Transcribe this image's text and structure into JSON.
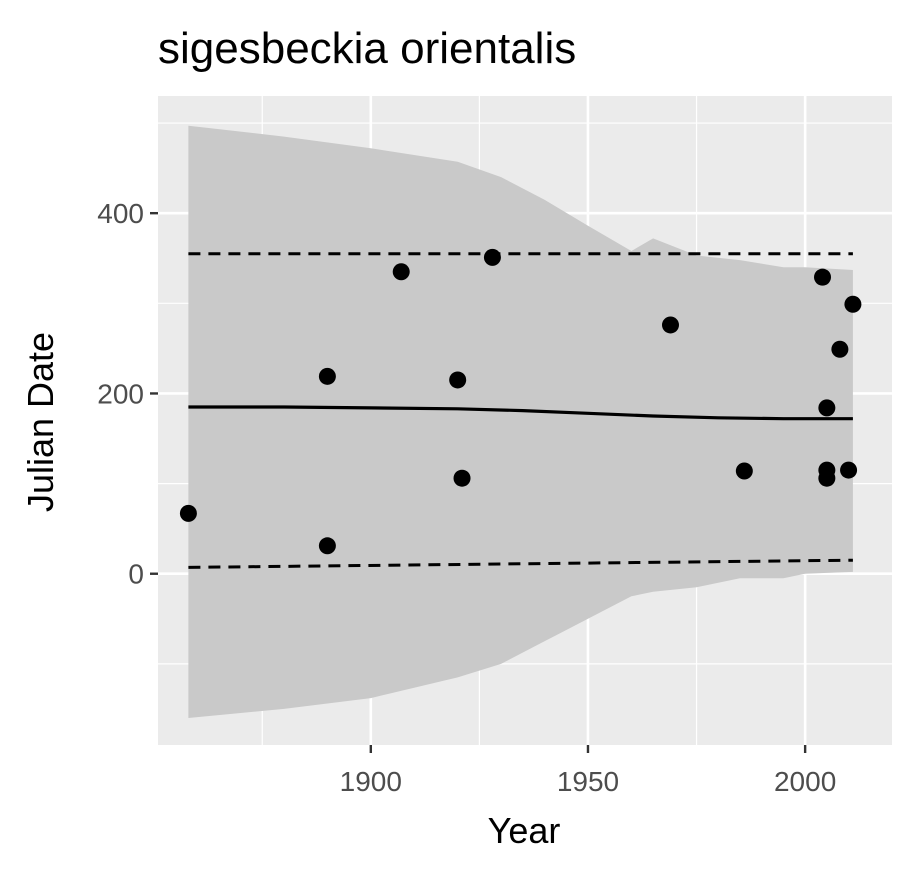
{
  "chart_data": {
    "type": "scatter",
    "title": "sigesbeckia orientalis",
    "xlabel": "Year",
    "ylabel": "Julian Date",
    "xlim": [
      1851,
      2020
    ],
    "ylim": [
      -190,
      530
    ],
    "x_ticks": [
      1900,
      1950,
      2000
    ],
    "y_ticks": [
      0,
      200,
      400
    ],
    "x_tick_labels": [
      "1900",
      "1950",
      "2000"
    ],
    "y_tick_labels": [
      "0",
      "200",
      "400"
    ],
    "grid": true,
    "legend": "none",
    "colors": {
      "panel_background": "#ebebeb",
      "grid_major": "#ffffff",
      "ribbon": "#c9c9c9",
      "points": "#000000",
      "lines": "#000000"
    },
    "points": {
      "x": [
        1858,
        1890,
        1890,
        1907,
        1920,
        1921,
        1928,
        1969,
        1986,
        2004,
        2005,
        2005,
        2005,
        2008,
        2010,
        2011
      ],
      "y": [
        67,
        219,
        31,
        335,
        215,
        106,
        351,
        276,
        114,
        329,
        184,
        115,
        106,
        249,
        115,
        299
      ]
    },
    "fit_line": {
      "x": [
        1858,
        1880,
        1900,
        1920,
        1935,
        1950,
        1965,
        1980,
        1995,
        2011
      ],
      "y": [
        185,
        185,
        184,
        183,
        181,
        178,
        175,
        173,
        172,
        172
      ]
    },
    "ribbon": {
      "x": [
        1858,
        1880,
        1900,
        1920,
        1930,
        1940,
        1950,
        1960,
        1965,
        1975,
        1985,
        1995,
        2000,
        2011
      ],
      "upper": [
        497,
        485,
        472,
        457,
        440,
        415,
        386,
        358,
        372,
        353,
        348,
        340,
        340,
        337
      ],
      "lower": [
        -160,
        -150,
        -138,
        -115,
        -100,
        -75,
        -50,
        -25,
        -20,
        -15,
        -5,
        -5,
        0,
        2
      ]
    },
    "upper_dashed": {
      "x": [
        1858,
        2011
      ],
      "y": [
        355,
        355
      ]
    },
    "lower_dashed": {
      "x": [
        1858,
        2011
      ],
      "y": [
        7,
        15
      ]
    }
  }
}
